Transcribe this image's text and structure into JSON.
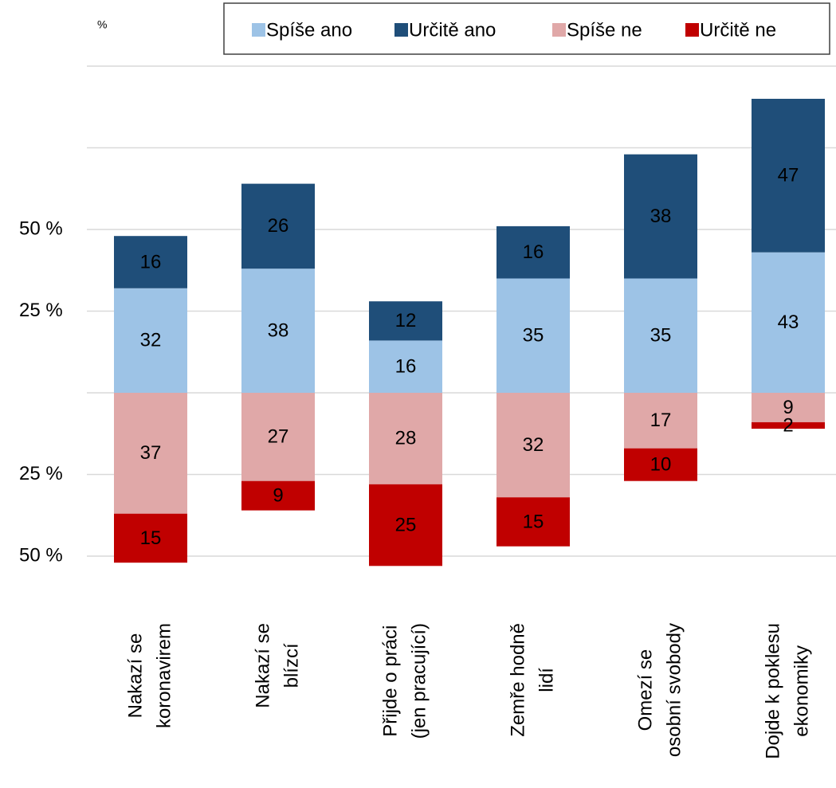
{
  "chart_data": {
    "type": "diverging_stacked_bar",
    "y_label": "%",
    "categories": [
      [
        "Nakazí se",
        "koronavirem"
      ],
      [
        "Nakazí se",
        "blízcí"
      ],
      [
        "Přijde o práci",
        "(jen pracující)"
      ],
      [
        "Zemře hodně",
        "lidí"
      ],
      [
        "Omezí se",
        "osobní svobody"
      ],
      [
        "Dojde k poklesu",
        "ekonomiky"
      ]
    ],
    "series": [
      {
        "name": "Spíše ano",
        "color": "#9dc3e6",
        "values": [
          32,
          38,
          16,
          35,
          35,
          43
        ]
      },
      {
        "name": "Určitě ano",
        "color": "#1f4e79",
        "values": [
          16,
          26,
          12,
          16,
          38,
          47
        ]
      },
      {
        "name": "Spíše ne",
        "color": "#e0a8a8",
        "values": [
          -37,
          -27,
          -28,
          -32,
          -17,
          -9
        ],
        "value_labels": [
          "37",
          "27",
          "28",
          "32",
          "17",
          "9"
        ]
      },
      {
        "name": "Určitě ne",
        "color": "#c00000",
        "values": [
          -15,
          -9,
          -25,
          -15,
          -10,
          -2
        ],
        "value_labels": [
          "15",
          "9",
          "25",
          "15",
          "10",
          "2"
        ]
      }
    ],
    "ylim": [
      -60,
      100
    ],
    "yticks": [
      {
        "value": -50,
        "label": "50 %"
      },
      {
        "value": -25,
        "label": "25 %"
      },
      {
        "value": 0,
        "label": null
      },
      {
        "value": 25,
        "label": "25 %"
      },
      {
        "value": 50,
        "label": "50 %"
      },
      {
        "value": 75,
        "label": null
      },
      {
        "value": 100,
        "label": null
      }
    ],
    "grid": true,
    "legend": "top-right"
  }
}
